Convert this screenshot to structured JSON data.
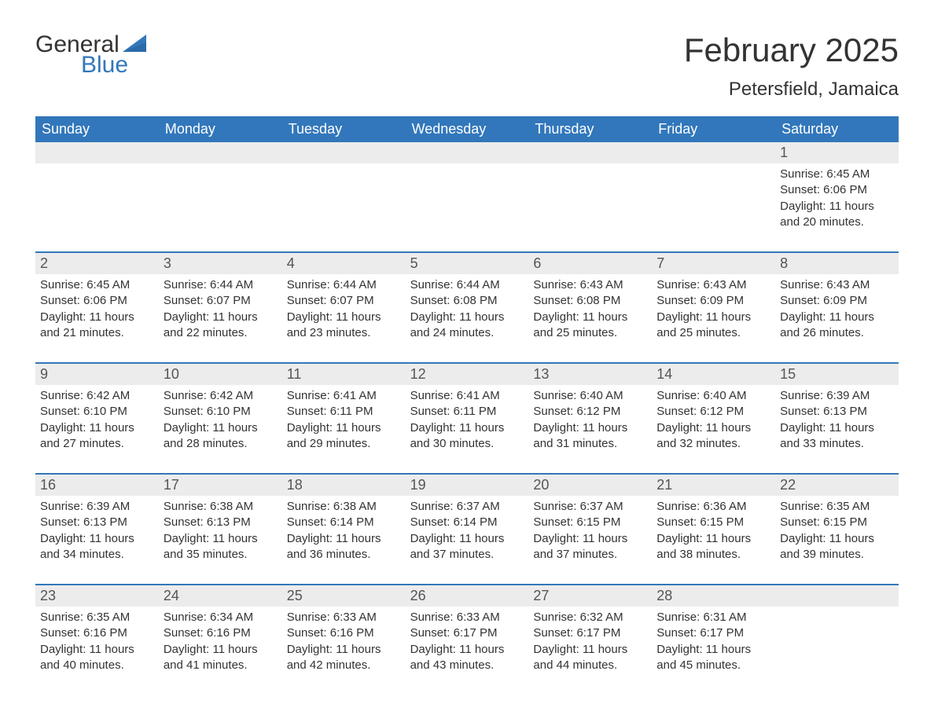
{
  "logo": {
    "text1": "General",
    "text2": "Blue"
  },
  "title": "February 2025",
  "location": "Petersfield, Jamaica",
  "colors": {
    "header_bg": "#3277bb",
    "header_text": "#ffffff",
    "day_num_bg": "#ececec",
    "day_num_text": "#555555",
    "body_text": "#333333",
    "accent": "#3277bb",
    "background": "#ffffff"
  },
  "typography": {
    "title_fontsize": 42,
    "location_fontsize": 24,
    "weekday_fontsize": 18,
    "daynum_fontsize": 18,
    "content_fontsize": 15
  },
  "weekdays": [
    "Sunday",
    "Monday",
    "Tuesday",
    "Wednesday",
    "Thursday",
    "Friday",
    "Saturday"
  ],
  "weeks": [
    [
      null,
      null,
      null,
      null,
      null,
      null,
      {
        "n": "1",
        "sunrise": "6:45 AM",
        "sunset": "6:06 PM",
        "daylight": "11 hours and 20 minutes."
      }
    ],
    [
      {
        "n": "2",
        "sunrise": "6:45 AM",
        "sunset": "6:06 PM",
        "daylight": "11 hours and 21 minutes."
      },
      {
        "n": "3",
        "sunrise": "6:44 AM",
        "sunset": "6:07 PM",
        "daylight": "11 hours and 22 minutes."
      },
      {
        "n": "4",
        "sunrise": "6:44 AM",
        "sunset": "6:07 PM",
        "daylight": "11 hours and 23 minutes."
      },
      {
        "n": "5",
        "sunrise": "6:44 AM",
        "sunset": "6:08 PM",
        "daylight": "11 hours and 24 minutes."
      },
      {
        "n": "6",
        "sunrise": "6:43 AM",
        "sunset": "6:08 PM",
        "daylight": "11 hours and 25 minutes."
      },
      {
        "n": "7",
        "sunrise": "6:43 AM",
        "sunset": "6:09 PM",
        "daylight": "11 hours and 25 minutes."
      },
      {
        "n": "8",
        "sunrise": "6:43 AM",
        "sunset": "6:09 PM",
        "daylight": "11 hours and 26 minutes."
      }
    ],
    [
      {
        "n": "9",
        "sunrise": "6:42 AM",
        "sunset": "6:10 PM",
        "daylight": "11 hours and 27 minutes."
      },
      {
        "n": "10",
        "sunrise": "6:42 AM",
        "sunset": "6:10 PM",
        "daylight": "11 hours and 28 minutes."
      },
      {
        "n": "11",
        "sunrise": "6:41 AM",
        "sunset": "6:11 PM",
        "daylight": "11 hours and 29 minutes."
      },
      {
        "n": "12",
        "sunrise": "6:41 AM",
        "sunset": "6:11 PM",
        "daylight": "11 hours and 30 minutes."
      },
      {
        "n": "13",
        "sunrise": "6:40 AM",
        "sunset": "6:12 PM",
        "daylight": "11 hours and 31 minutes."
      },
      {
        "n": "14",
        "sunrise": "6:40 AM",
        "sunset": "6:12 PM",
        "daylight": "11 hours and 32 minutes."
      },
      {
        "n": "15",
        "sunrise": "6:39 AM",
        "sunset": "6:13 PM",
        "daylight": "11 hours and 33 minutes."
      }
    ],
    [
      {
        "n": "16",
        "sunrise": "6:39 AM",
        "sunset": "6:13 PM",
        "daylight": "11 hours and 34 minutes."
      },
      {
        "n": "17",
        "sunrise": "6:38 AM",
        "sunset": "6:13 PM",
        "daylight": "11 hours and 35 minutes."
      },
      {
        "n": "18",
        "sunrise": "6:38 AM",
        "sunset": "6:14 PM",
        "daylight": "11 hours and 36 minutes."
      },
      {
        "n": "19",
        "sunrise": "6:37 AM",
        "sunset": "6:14 PM",
        "daylight": "11 hours and 37 minutes."
      },
      {
        "n": "20",
        "sunrise": "6:37 AM",
        "sunset": "6:15 PM",
        "daylight": "11 hours and 37 minutes."
      },
      {
        "n": "21",
        "sunrise": "6:36 AM",
        "sunset": "6:15 PM",
        "daylight": "11 hours and 38 minutes."
      },
      {
        "n": "22",
        "sunrise": "6:35 AM",
        "sunset": "6:15 PM",
        "daylight": "11 hours and 39 minutes."
      }
    ],
    [
      {
        "n": "23",
        "sunrise": "6:35 AM",
        "sunset": "6:16 PM",
        "daylight": "11 hours and 40 minutes."
      },
      {
        "n": "24",
        "sunrise": "6:34 AM",
        "sunset": "6:16 PM",
        "daylight": "11 hours and 41 minutes."
      },
      {
        "n": "25",
        "sunrise": "6:33 AM",
        "sunset": "6:16 PM",
        "daylight": "11 hours and 42 minutes."
      },
      {
        "n": "26",
        "sunrise": "6:33 AM",
        "sunset": "6:17 PM",
        "daylight": "11 hours and 43 minutes."
      },
      {
        "n": "27",
        "sunrise": "6:32 AM",
        "sunset": "6:17 PM",
        "daylight": "11 hours and 44 minutes."
      },
      {
        "n": "28",
        "sunrise": "6:31 AM",
        "sunset": "6:17 PM",
        "daylight": "11 hours and 45 minutes."
      },
      null
    ]
  ],
  "labels": {
    "sunrise": "Sunrise:",
    "sunset": "Sunset:",
    "daylight": "Daylight:"
  }
}
